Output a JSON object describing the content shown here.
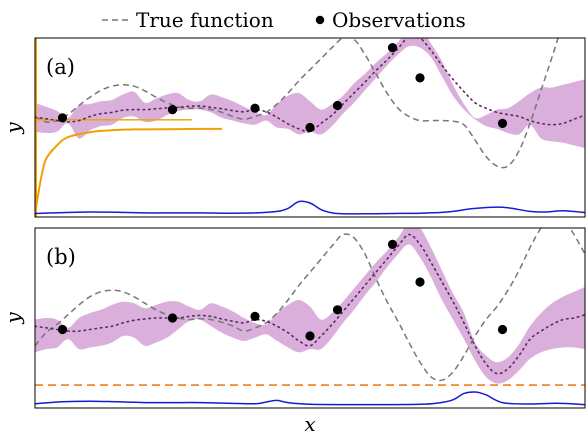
{
  "legend": {
    "position": "top",
    "items": [
      {
        "label": "True function",
        "style": "dashed",
        "color": "#777777"
      },
      {
        "label": "Observations",
        "style": "dot",
        "color": "#000000"
      }
    ]
  },
  "colors": {
    "true_function": "#777777",
    "mean": "#5b2a5e",
    "band": "#d6a6d8",
    "acquisition": "#1a1ad0",
    "slice_curve": "#f0a000",
    "threshold": "#f07f1a",
    "observation": "#000000"
  },
  "chart_data": [
    {
      "panel_label": "(a)",
      "type": "line",
      "xlabel": "",
      "ylabel": "y",
      "xlim": [
        0,
        1
      ],
      "ylim": [
        -3.6,
        2.9
      ],
      "grid": false,
      "x": [
        0,
        0.02,
        0.04,
        0.06,
        0.08,
        0.1,
        0.12,
        0.14,
        0.16,
        0.18,
        0.2,
        0.22,
        0.24,
        0.26,
        0.28,
        0.3,
        0.32,
        0.34,
        0.36,
        0.38,
        0.4,
        0.42,
        0.44,
        0.46,
        0.48,
        0.5,
        0.52,
        0.54,
        0.56,
        0.58,
        0.6,
        0.62,
        0.64,
        0.66,
        0.68,
        0.7,
        0.72,
        0.74,
        0.76,
        0.78,
        0.8,
        0.82,
        0.84,
        0.86,
        0.88,
        0.9,
        0.92,
        0.94,
        0.96,
        0.98,
        1.0
      ],
      "true_function": [
        0.05,
        -0.15,
        -0.1,
        0.12,
        0.45,
        0.75,
        1.0,
        1.15,
        1.2,
        1.15,
        0.98,
        0.75,
        0.55,
        0.4,
        0.35,
        0.36,
        0.3,
        0.2,
        0.05,
        -0.05,
        0.05,
        0.2,
        0.5,
        0.9,
        1.35,
        1.75,
        2.15,
        2.55,
        2.9,
        2.85,
        2.3,
        1.6,
        0.9,
        0.35,
        0.05,
        -0.1,
        -0.1,
        -0.1,
        -0.12,
        -0.25,
        -0.8,
        -1.4,
        -1.75,
        -1.75,
        -1.2,
        -0.2,
        1.0,
        2.2,
        3.4,
        4.1,
        3.75
      ],
      "mean": [
        0.02,
        -0.03,
        -0.1,
        -0.15,
        -0.1,
        0.05,
        0.15,
        0.2,
        0.28,
        0.3,
        0.3,
        0.33,
        0.36,
        0.38,
        0.42,
        0.43,
        0.38,
        0.33,
        0.26,
        0.22,
        0.3,
        0.22,
        0.02,
        -0.22,
        -0.4,
        -0.5,
        -0.2,
        0.1,
        0.5,
        0.9,
        1.3,
        1.72,
        2.1,
        2.52,
        2.95,
        2.9,
        2.45,
        1.9,
        1.4,
        0.95,
        0.55,
        0.35,
        0.2,
        0.12,
        0.05,
        -0.1,
        -0.2,
        -0.25,
        -0.2,
        -0.05,
        0.1
      ],
      "band_upper": [
        0.55,
        0.4,
        0.25,
        0.0,
        0.45,
        0.5,
        0.6,
        0.65,
        0.85,
        0.95,
        0.55,
        0.7,
        0.85,
        0.9,
        0.65,
        0.6,
        0.85,
        0.75,
        0.6,
        0.4,
        0.22,
        0.1,
        0.5,
        0.8,
        0.9,
        0.6,
        0.3,
        0.5,
        0.8,
        1.25,
        1.6,
        2.0,
        2.35,
        2.75,
        3.2,
        3.3,
        2.7,
        2.05,
        1.2,
        0.5,
        0.0,
        0.1,
        0.3,
        0.35,
        0.6,
        0.9,
        1.1,
        1.1,
        1.2,
        1.3,
        1.4
      ],
      "band_lower": [
        -0.5,
        -0.55,
        -0.5,
        -0.2,
        -0.75,
        -0.45,
        -0.3,
        -0.25,
        0.0,
        0.05,
        -0.15,
        -0.1,
        0.1,
        0.25,
        0.3,
        0.3,
        0.2,
        0.0,
        -0.1,
        -0.2,
        -0.25,
        -0.1,
        -0.35,
        -0.4,
        -0.6,
        -0.5,
        -0.6,
        -0.3,
        0.15,
        0.55,
        1.0,
        1.45,
        1.9,
        2.3,
        2.6,
        2.55,
        2.2,
        1.5,
        0.8,
        0.3,
        -0.05,
        -0.3,
        -0.4,
        -0.55,
        -0.6,
        -0.25,
        -0.75,
        -0.85,
        -0.9,
        -1.0,
        -1.1
      ],
      "observations": {
        "x": [
          0.05,
          0.25,
          0.4,
          0.5,
          0.55,
          0.65,
          0.7,
          0.85
        ],
        "y": [
          0.0,
          0.3,
          0.35,
          -0.35,
          0.45,
          2.55,
          1.45,
          -0.2
        ]
      },
      "acquisition": {
        "ylim": [
          0,
          1
        ],
        "x": [
          0,
          0.05,
          0.1,
          0.15,
          0.2,
          0.25,
          0.3,
          0.35,
          0.4,
          0.44,
          0.46,
          0.48,
          0.5,
          0.52,
          0.54,
          0.56,
          0.6,
          0.65,
          0.7,
          0.75,
          0.8,
          0.85,
          0.9,
          0.93,
          0.96,
          1.0
        ],
        "y": [
          0.05,
          0.08,
          0.1,
          0.09,
          0.07,
          0.07,
          0.07,
          0.06,
          0.07,
          0.12,
          0.22,
          0.45,
          0.4,
          0.18,
          0.07,
          0.04,
          0.04,
          0.05,
          0.06,
          0.1,
          0.22,
          0.26,
          0.12,
          0.1,
          0.14,
          0.08
        ]
      },
      "slice_curve": {
        "x_vals": [
          0,
          0.01,
          0.02,
          0.04,
          0.06,
          0.1,
          0.14,
          0.18,
          0.24,
          0.3,
          0.34
        ],
        "y_vals": [
          -3.5,
          -2.3,
          -1.5,
          -1.0,
          -0.7,
          -0.52,
          -0.45,
          -0.42,
          -0.41,
          -0.4,
          -0.4
        ],
        "axis_x": 0,
        "level_y": 0.0
      }
    },
    {
      "panel_label": "(b)",
      "type": "line",
      "xlabel": "x",
      "ylabel": "y",
      "xlim": [
        0,
        1
      ],
      "ylim": [
        -2.4,
        3.1
      ],
      "grid": false,
      "x": [
        0,
        0.02,
        0.04,
        0.06,
        0.08,
        0.1,
        0.12,
        0.14,
        0.16,
        0.18,
        0.2,
        0.22,
        0.24,
        0.26,
        0.28,
        0.3,
        0.32,
        0.34,
        0.36,
        0.38,
        0.4,
        0.42,
        0.44,
        0.46,
        0.48,
        0.5,
        0.52,
        0.54,
        0.56,
        0.58,
        0.6,
        0.62,
        0.64,
        0.66,
        0.68,
        0.7,
        0.72,
        0.74,
        0.76,
        0.78,
        0.8,
        0.82,
        0.84,
        0.86,
        0.88,
        0.9,
        0.92,
        0.94,
        0.96,
        0.98,
        1.0
      ],
      "true_function": [
        -0.5,
        -0.1,
        0.15,
        0.45,
        0.75,
        1.0,
        1.15,
        1.2,
        1.15,
        1.0,
        0.8,
        0.6,
        0.45,
        0.35,
        0.3,
        0.33,
        0.3,
        0.22,
        0.1,
        -0.05,
        0.05,
        0.2,
        0.5,
        0.9,
        1.35,
        1.75,
        2.15,
        2.55,
        2.9,
        2.8,
        2.3,
        1.55,
        0.85,
        0.25,
        -0.4,
        -1.0,
        -1.45,
        -1.55,
        -1.3,
        -0.8,
        -0.2,
        0.3,
        0.7,
        1.2,
        1.8,
        2.5,
        3.1,
        3.5,
        3.4,
        2.9,
        2.3
      ],
      "mean": [
        0.1,
        0.05,
        0.0,
        -0.05,
        -0.05,
        0.0,
        0.05,
        0.1,
        0.2,
        0.28,
        0.32,
        0.35,
        0.35,
        0.35,
        0.4,
        0.43,
        0.4,
        0.32,
        0.25,
        0.2,
        0.3,
        0.25,
        0.1,
        -0.1,
        -0.35,
        -0.5,
        -0.2,
        0.15,
        0.55,
        0.95,
        1.35,
        1.75,
        2.15,
        2.55,
        2.9,
        2.6,
        2.05,
        1.45,
        0.85,
        0.2,
        -0.5,
        -1.05,
        -1.35,
        -1.2,
        -0.8,
        -0.3,
        -0.05,
        0.15,
        0.3,
        0.35,
        0.45
      ],
      "band_upper": [
        0.3,
        0.35,
        0.3,
        0.05,
        0.35,
        0.5,
        0.6,
        0.75,
        0.85,
        0.8,
        0.65,
        0.75,
        0.85,
        0.85,
        0.7,
        0.6,
        0.8,
        0.7,
        0.55,
        0.35,
        0.2,
        0.15,
        0.5,
        0.75,
        0.9,
        0.7,
        0.3,
        0.5,
        0.85,
        1.25,
        1.65,
        2.05,
        2.4,
        2.8,
        3.25,
        3.1,
        2.5,
        1.8,
        1.1,
        0.5,
        -0.4,
        -0.8,
        -1.0,
        -0.85,
        -0.45,
        0.1,
        0.5,
        0.8,
        1.0,
        1.15,
        1.3
      ],
      "band_lower": [
        -0.7,
        -0.6,
        -0.55,
        -0.3,
        -0.6,
        -0.55,
        -0.5,
        -0.4,
        -0.2,
        -0.25,
        -0.5,
        -0.4,
        -0.25,
        0.0,
        0.25,
        0.3,
        0.1,
        -0.1,
        -0.25,
        -0.35,
        -0.25,
        -0.15,
        -0.35,
        -0.55,
        -0.7,
        -0.6,
        -0.6,
        -0.25,
        0.2,
        0.6,
        1.05,
        1.45,
        1.9,
        2.3,
        2.6,
        2.2,
        1.6,
        0.9,
        0.3,
        -0.3,
        -0.95,
        -1.45,
        -1.65,
        -1.55,
        -1.25,
        -0.9,
        -0.7,
        -0.6,
        -0.55,
        -0.55,
        -0.6
      ],
      "observations": {
        "x": [
          0.05,
          0.25,
          0.4,
          0.5,
          0.55,
          0.65,
          0.7,
          0.85
        ],
        "y": [
          0.0,
          0.35,
          0.4,
          -0.2,
          0.6,
          2.6,
          1.45,
          0.0
        ]
      },
      "acquisition": {
        "ylim": [
          0,
          1
        ],
        "x": [
          0,
          0.05,
          0.1,
          0.15,
          0.2,
          0.25,
          0.3,
          0.35,
          0.4,
          0.42,
          0.44,
          0.46,
          0.5,
          0.55,
          0.6,
          0.65,
          0.7,
          0.73,
          0.76,
          0.78,
          0.8,
          0.82,
          0.85,
          0.9,
          0.95,
          1.0
        ],
        "y": [
          0.08,
          0.15,
          0.17,
          0.15,
          0.12,
          0.12,
          0.12,
          0.1,
          0.08,
          0.14,
          0.2,
          0.12,
          0.06,
          0.05,
          0.05,
          0.05,
          0.06,
          0.1,
          0.22,
          0.45,
          0.5,
          0.4,
          0.12,
          0.07,
          0.1,
          0.05
        ]
      },
      "threshold": {
        "y": -1.7
      }
    }
  ]
}
